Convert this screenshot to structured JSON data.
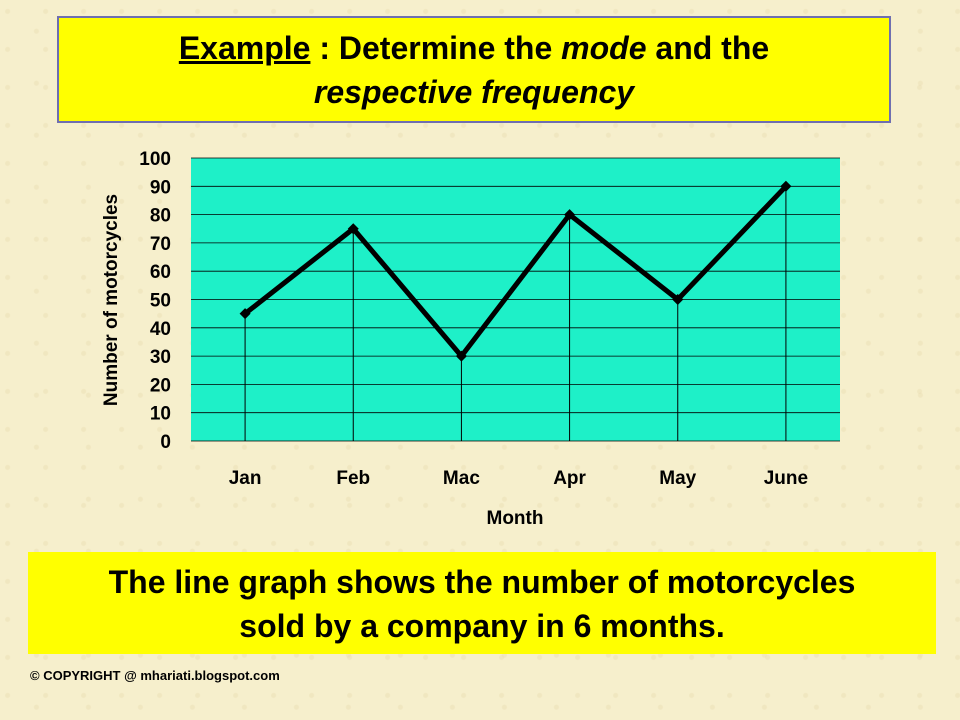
{
  "title": {
    "part1": "Example",
    "part2": " : Determine the ",
    "part3": "mode",
    "part4": " and the",
    "line2": "respective frequency"
  },
  "caption": {
    "line1": "The line graph shows the number of motorcycles",
    "line2": "sold by a company in 6 months."
  },
  "copyright": "© COPYRIGHT @ mhariati.blogspot.com",
  "chart_data": {
    "type": "line",
    "categories": [
      "Jan",
      "Feb",
      "Mac",
      "Apr",
      "May",
      "June"
    ],
    "values": [
      45,
      75,
      30,
      80,
      50,
      90
    ],
    "xlabel": "Month",
    "ylabel": "Number of motorcycles",
    "ylim": [
      0,
      100
    ],
    "yticks": [
      0,
      10,
      20,
      30,
      40,
      50,
      60,
      70,
      80,
      90,
      100
    ],
    "grid": true,
    "colors": {
      "plot_bg": "#1ef0c8",
      "line": "#000000",
      "grid": "#000000"
    }
  }
}
